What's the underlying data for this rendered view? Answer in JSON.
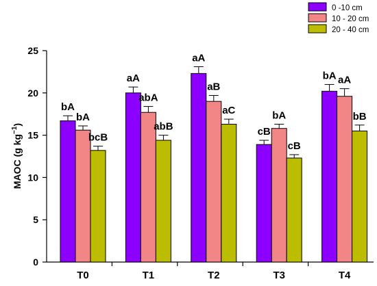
{
  "chart_data": {
    "type": "bar",
    "title": "",
    "xlabel": "",
    "ylabel_main": "MAOC (g kg",
    "ylabel_sup": "−1",
    "ylabel_close": ")",
    "ylim": [
      0,
      25
    ],
    "yticks": [
      "0",
      "5",
      "10",
      "15",
      "20",
      "25"
    ],
    "legend_position": "top-right",
    "categories": [
      "T0",
      "T1",
      "T2",
      "T3",
      "T4"
    ],
    "series": [
      {
        "name": "0 -10 cm",
        "color": "#8b00ff",
        "values": [
          16.7,
          20.0,
          22.3,
          13.9,
          20.2
        ],
        "errors": [
          0.6,
          0.7,
          0.8,
          0.5,
          0.8
        ],
        "labels": [
          "bA",
          "aA",
          "aA",
          "cB",
          "bA"
        ]
      },
      {
        "name": "10 - 20 cm",
        "color": "#f28585",
        "values": [
          15.6,
          17.7,
          19.0,
          15.8,
          19.6
        ],
        "errors": [
          0.5,
          0.7,
          0.7,
          0.5,
          0.9
        ],
        "labels": [
          "bA",
          "abA",
          "aB",
          "bA",
          "aA"
        ]
      },
      {
        "name": "20 - 40 cm",
        "color": "#bcbc00",
        "values": [
          13.2,
          14.4,
          16.3,
          12.3,
          15.5
        ],
        "errors": [
          0.5,
          0.6,
          0.6,
          0.4,
          0.7
        ],
        "labels": [
          "bcB",
          "abB",
          "aC",
          "cB",
          "bB"
        ]
      }
    ]
  }
}
